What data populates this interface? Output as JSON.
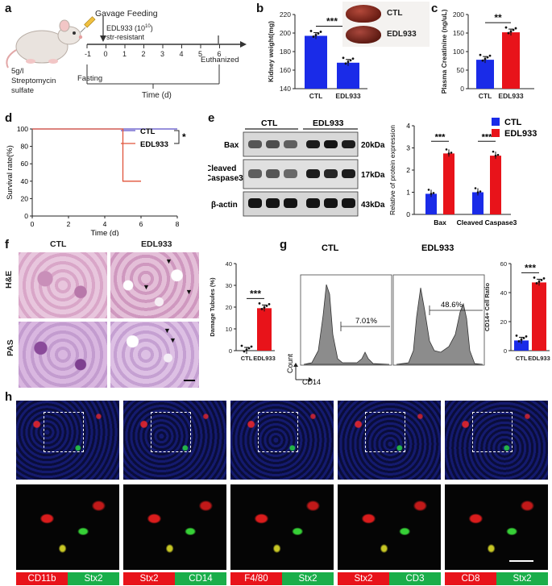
{
  "panel_labels": {
    "a": "a",
    "b": "b",
    "c": "c",
    "d": "d",
    "e": "e",
    "f": "f",
    "g": "g",
    "h": "h"
  },
  "panel_a": {
    "gavage": "Gavage Feeding",
    "edl_line1": "EDL933 (10",
    "edl_exp": "10",
    "edl_close": ")",
    "edl_line2": "str-resistant",
    "euthanized": "Euthanized",
    "fasting": "Fasting",
    "time_label": "Time (d)",
    "strep_line1": "5g/l",
    "strep_line2": "Streptomycin",
    "strep_line3": "sulfate",
    "ticks": [
      "-1",
      "0",
      "1",
      "2",
      "3",
      "4",
      "5",
      "6"
    ]
  },
  "chart_data": [
    {
      "id": "kidney_weight",
      "type": "bar",
      "categories": [
        "CTL",
        "EDL933"
      ],
      "values": [
        197,
        168
      ],
      "ylabel": "Kidney weight(mg)",
      "ylim": [
        140,
        220
      ],
      "yticks": [
        "140",
        "160",
        "180",
        "200",
        "220"
      ],
      "colors": [
        "#1a2be8",
        "#1a2be8"
      ],
      "significance": "***",
      "photo_labels": [
        "CTL",
        "EDL933"
      ]
    },
    {
      "id": "plasma_creatinine",
      "type": "bar",
      "categories": [
        "CTL",
        "EDL933"
      ],
      "values": [
        78,
        152
      ],
      "ylabel": "Plasma Creatinine (ng/uL)",
      "ylim": [
        0,
        200
      ],
      "yticks": [
        "0",
        "50",
        "100",
        "150",
        "200"
      ],
      "colors": [
        "#1a2be8",
        "#e8131a"
      ],
      "significance": "**"
    },
    {
      "id": "survival",
      "type": "line",
      "series": [
        {
          "name": "CTL",
          "x": [
            0,
            8
          ],
          "y": [
            100,
            100
          ],
          "color": "#5b4fc8"
        },
        {
          "name": "EDL933",
          "x": [
            0,
            5,
            5,
            6
          ],
          "y": [
            100,
            100,
            40,
            40
          ],
          "color": "#e0533a"
        }
      ],
      "xlabel": "Time (d)",
      "ylabel": "Survival rate(%)",
      "xlim": [
        0,
        8
      ],
      "ylim": [
        0,
        100
      ],
      "xticks": [
        "0",
        "2",
        "4",
        "6",
        "8"
      ],
      "yticks": [
        "0",
        "20",
        "40",
        "60",
        "80",
        "100"
      ],
      "significance": "*"
    },
    {
      "id": "protein_expression",
      "type": "bar",
      "categories": [
        "Bax",
        "Cleaved Caspase3"
      ],
      "series": [
        {
          "name": "CTL",
          "values": [
            0.93,
            1.0
          ],
          "color": "#1a2be8"
        },
        {
          "name": "EDL933",
          "values": [
            2.75,
            2.65
          ],
          "color": "#e8131a"
        }
      ],
      "ylabel": "Relative of protein expression",
      "ylim": [
        0,
        4
      ],
      "yticks": [
        "0",
        "1",
        "2",
        "3",
        "4"
      ],
      "significance": [
        "***",
        "***"
      ]
    },
    {
      "id": "damage_tubules",
      "type": "bar",
      "categories": [
        "CTL",
        "EDL933"
      ],
      "values": [
        0,
        19.5
      ],
      "ylabel": "Damage Tubules (%)",
      "ylim": [
        0,
        40
      ],
      "yticks": [
        "0",
        "10",
        "20",
        "30",
        "40"
      ],
      "colors": [
        "#1a2be8",
        "#e8131a"
      ],
      "significance": "***"
    },
    {
      "id": "cd14_ratio",
      "type": "bar",
      "categories": [
        "CTL",
        "EDL933"
      ],
      "values": [
        7,
        47
      ],
      "ylabel": "CD14+ Cell Ratio",
      "ylim": [
        0,
        60
      ],
      "yticks": [
        "0",
        "20",
        "40",
        "60"
      ],
      "colors": [
        "#1a2be8",
        "#e8131a"
      ],
      "significance": "***"
    }
  ],
  "panel_e": {
    "groups": [
      "CTL",
      "EDL933"
    ],
    "rows": [
      "Bax",
      "Cleaved Caspase3",
      "β-actin"
    ],
    "row_label_cc1": "Cleaved",
    "row_label_cc2": "Caspase3",
    "sizes": [
      "20kDa",
      "17kDa",
      "43kDa"
    ]
  },
  "panel_f": {
    "cols": [
      "CTL",
      "EDL933"
    ],
    "rows": [
      "H&E",
      "PAS"
    ]
  },
  "panel_g": {
    "titles": [
      "CTL",
      "EDL933"
    ],
    "gates": [
      "7.01%",
      "48.6%"
    ],
    "xlabel": "CD14",
    "ylabel": "Count"
  },
  "panel_h": {
    "stains": [
      {
        "left": "CD11b",
        "right": "Stx2",
        "left_color": "#e8131a",
        "right_color": "#1aae4a"
      },
      {
        "left": "Stx2",
        "right": "CD14",
        "left_color": "#e8131a",
        "right_color": "#1aae4a"
      },
      {
        "left": "F4/80",
        "right": "Stx2",
        "left_color": "#e8131a",
        "right_color": "#1aae4a"
      },
      {
        "left": "Stx2",
        "right": "CD3",
        "left_color": "#e8131a",
        "right_color": "#1aae4a"
      },
      {
        "left": "CD8",
        "right": "Stx2",
        "left_color": "#e8131a",
        "right_color": "#1aae4a"
      }
    ]
  }
}
